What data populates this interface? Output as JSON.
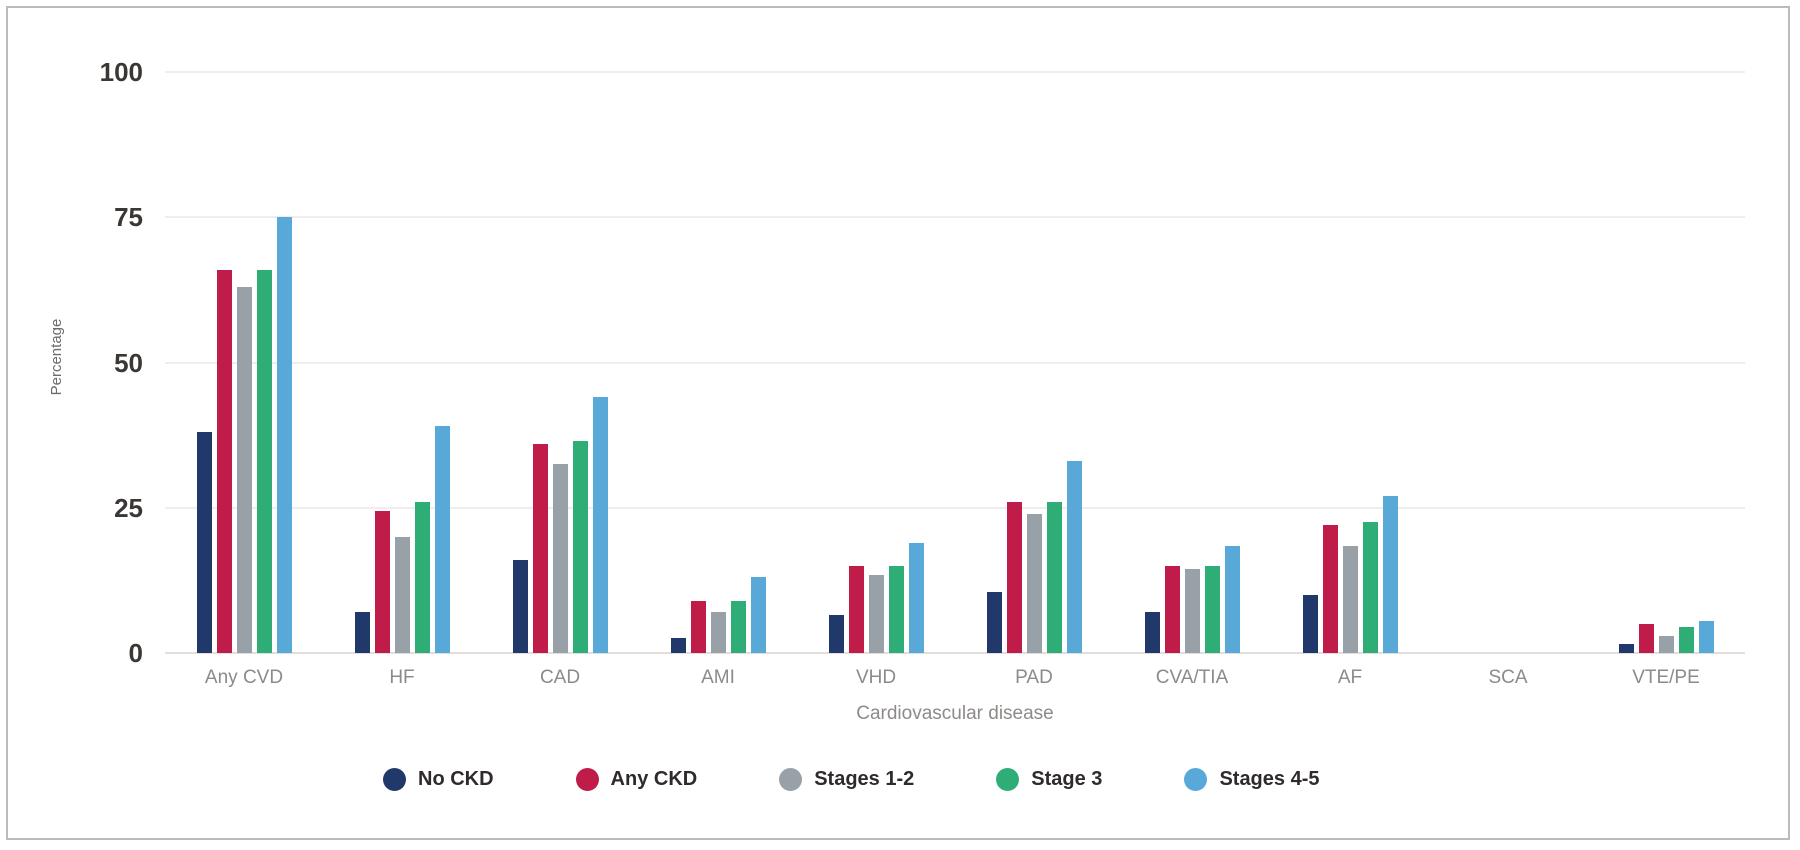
{
  "figure": {
    "border_color": "#bdbbb9",
    "background": "#ffffff"
  },
  "chart_data": {
    "type": "bar",
    "title": "",
    "xlabel": "Cardiovascular disease",
    "ylabel": "Percentage",
    "ylim": [
      0,
      100
    ],
    "yticks": [
      0,
      25,
      50,
      75,
      100
    ],
    "grid": "horizontal gridlines at each y tick",
    "legend_position": "bottom center",
    "categories": [
      "Any CVD",
      "HF",
      "CAD",
      "AMI",
      "VHD",
      "PAD",
      "CVA/TIA",
      "AF",
      "SCA",
      "VTE/PE"
    ],
    "series": [
      {
        "name": "No CKD",
        "color": "#21386b",
        "values": [
          38,
          7,
          16,
          2.5,
          6.5,
          10.5,
          7,
          10,
          0,
          1.5
        ]
      },
      {
        "name": "Any CKD",
        "color": "#bf1c49",
        "values": [
          66,
          24.5,
          36,
          9,
          15,
          26,
          15,
          22,
          0,
          5
        ]
      },
      {
        "name": "Stages 1-2",
        "color": "#98a0a8",
        "values": [
          63,
          20,
          32.5,
          7,
          13.5,
          24,
          14.5,
          18.5,
          0,
          3
        ]
      },
      {
        "name": "Stage 3",
        "color": "#2eae76",
        "values": [
          66,
          26,
          36.5,
          9,
          15,
          26,
          15,
          22.5,
          0,
          4.5
        ]
      },
      {
        "name": "Stages 4-5",
        "color": "#58a9d7",
        "values": [
          75,
          39,
          44,
          13,
          19,
          33,
          18.5,
          27,
          0,
          5.5
        ]
      }
    ]
  }
}
